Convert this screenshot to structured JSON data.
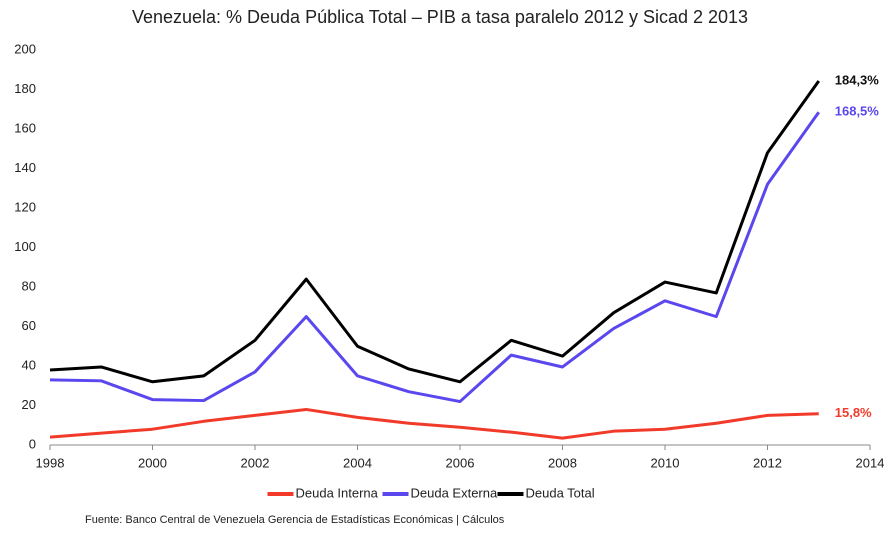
{
  "chart_data": {
    "type": "line",
    "title": "Venezuela: % Deuda Pública Total – PIB a tasa paralelo 2012 y Sicad 2 2013",
    "source": "Fuente: Banco Central de Venezuela Gerencia de Estadísticas Económicas | Cálculos",
    "x": [
      1998,
      1999,
      2000,
      2001,
      2002,
      2003,
      2004,
      2005,
      2006,
      2007,
      2008,
      2009,
      2010,
      2011,
      2012,
      2013
    ],
    "series": [
      {
        "name": "Deuda Interna",
        "color": "#f23a2a",
        "values": [
          4,
          6,
          8,
          12,
          15,
          18,
          14,
          11,
          9,
          6.5,
          3.5,
          7,
          8,
          11,
          15,
          15.8
        ],
        "value_labels": [
          null,
          null,
          null,
          null,
          null,
          null,
          null,
          null,
          null,
          null,
          null,
          null,
          null,
          null,
          null,
          "15,8%"
        ]
      },
      {
        "name": "Deuda Externa",
        "color": "#5b47ee",
        "values": [
          33,
          32.5,
          23,
          22.5,
          37,
          65,
          35,
          27,
          22,
          45.5,
          39.5,
          59,
          73,
          65,
          132,
          168.5
        ],
        "value_labels": [
          null,
          null,
          null,
          null,
          null,
          null,
          null,
          null,
          null,
          null,
          null,
          null,
          null,
          null,
          null,
          "168,5%"
        ]
      },
      {
        "name": "Deuda Total",
        "color": "#000000",
        "values": [
          38,
          39.5,
          32,
          35,
          53,
          84,
          50,
          38.5,
          32,
          53,
          45,
          67,
          82.5,
          77,
          148,
          184.3
        ],
        "value_labels": [
          null,
          null,
          null,
          null,
          null,
          null,
          null,
          null,
          null,
          null,
          null,
          null,
          null,
          null,
          null,
          "184,3%"
        ]
      }
    ],
    "xlim": [
      1998,
      2014
    ],
    "xticks": [
      1998,
      2000,
      2002,
      2004,
      2006,
      2008,
      2010,
      2012,
      2014
    ],
    "ylim": [
      0,
      200
    ],
    "yticks": [
      0,
      20,
      40,
      60,
      80,
      100,
      120,
      140,
      160,
      180,
      200
    ],
    "legend": "bottom"
  }
}
